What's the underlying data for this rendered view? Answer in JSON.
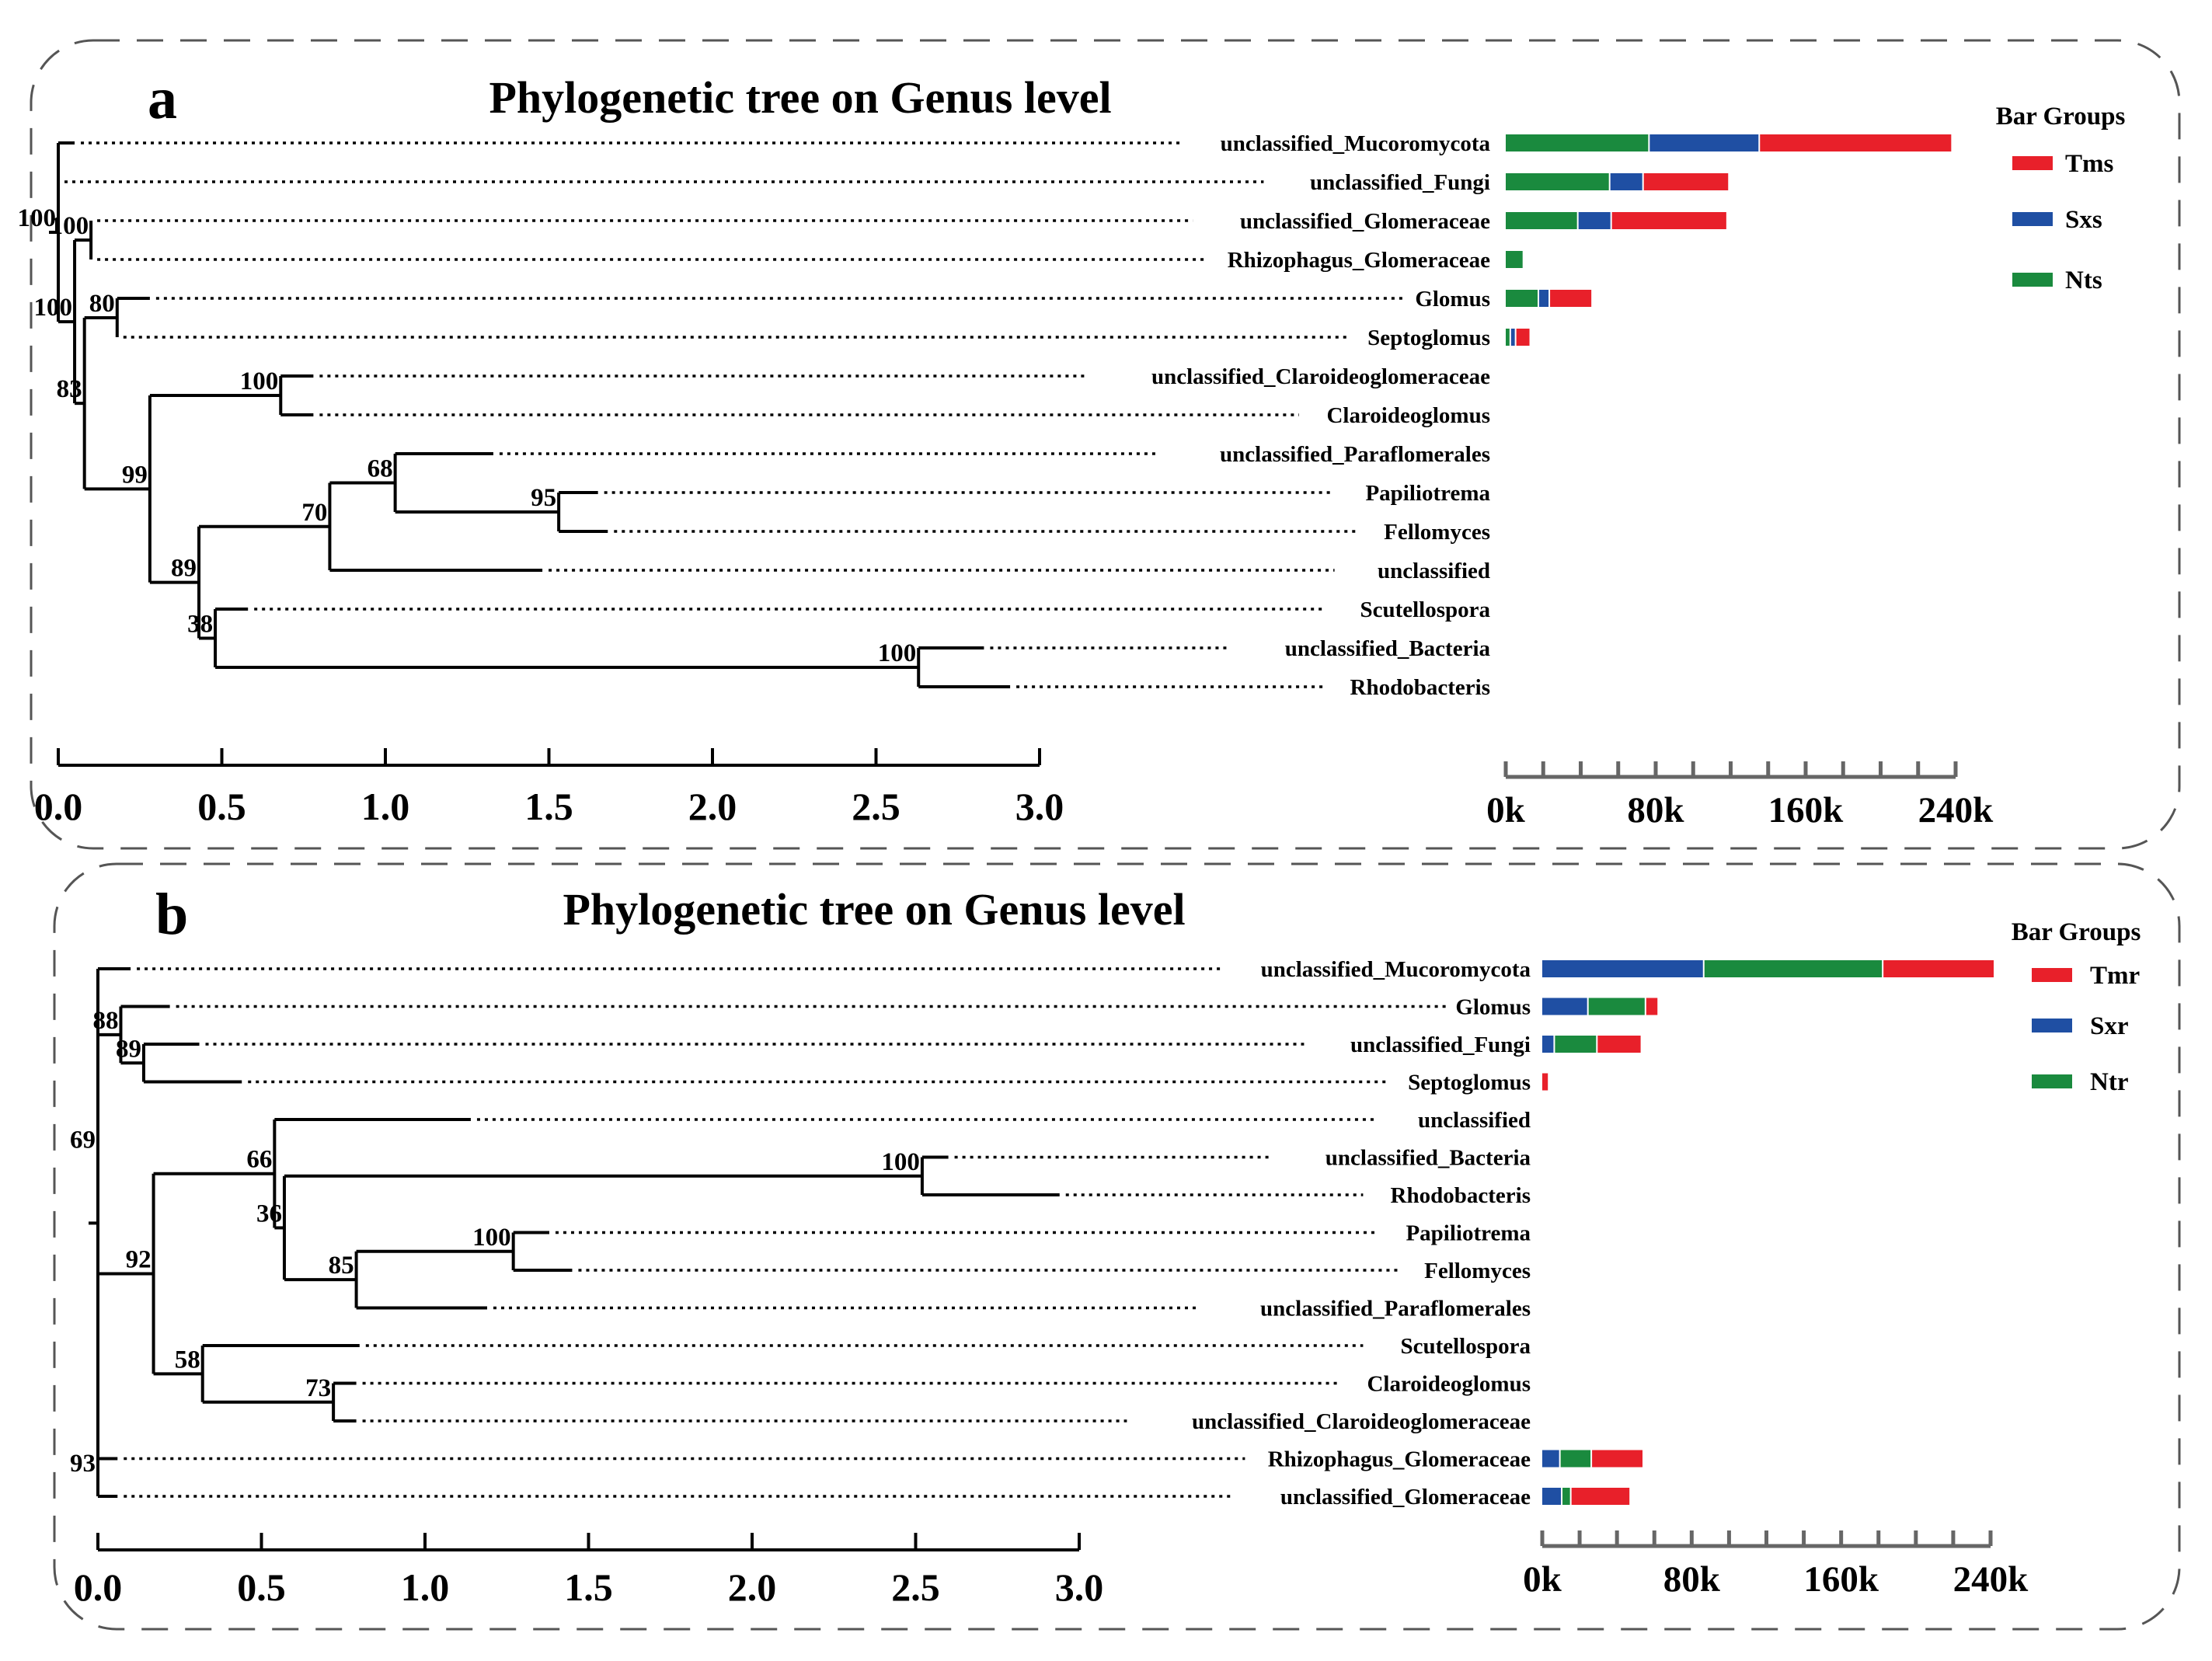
{
  "chart_data": [
    {
      "type": "phylogenetic-tree-with-stacked-bars",
      "panel_label": "a",
      "title": "Phylogenetic tree on Genus level",
      "tree_axis": {
        "min": 0.0,
        "max": 3.0,
        "ticks": [
          "0.0",
          "0.5",
          "1.0",
          "1.5",
          "2.0",
          "2.5",
          "3.0"
        ]
      },
      "bar_axis": {
        "min": 0,
        "max": 240000,
        "ticks": [
          "0k",
          "80k",
          "160k",
          "240k"
        ]
      },
      "legend_title": "Bar Groups",
      "series": [
        {
          "name": "Tms",
          "color": "#e8202a"
        },
        {
          "name": "Sxs",
          "color": "#1f4fa3"
        },
        {
          "name": "Nts",
          "color": "#1a8a3e"
        }
      ],
      "stack_order": [
        "Nts",
        "Sxs",
        "Tms"
      ],
      "leaves": [
        {
          "name": "unclassified_Mucoromycota",
          "Nts": 76000,
          "Sxs": 58000,
          "Tms": 102000
        },
        {
          "name": "unclassified_Fungi",
          "Nts": 55000,
          "Sxs": 17000,
          "Tms": 45000
        },
        {
          "name": "unclassified_Glomeraceae",
          "Nts": 38000,
          "Sxs": 17000,
          "Tms": 61000
        },
        {
          "name": "Rhizophagus_Glomeraceae",
          "Nts": 9000,
          "Sxs": 0,
          "Tms": 0
        },
        {
          "name": "Glomus",
          "Nts": 17000,
          "Sxs": 5000,
          "Tms": 22000
        },
        {
          "name": "Septoglomus",
          "Nts": 2000,
          "Sxs": 2000,
          "Tms": 7000
        },
        {
          "name": "unclassified_Claroideoglomeraceae",
          "Nts": 0,
          "Sxs": 0,
          "Tms": 0
        },
        {
          "name": "Claroideoglomus",
          "Nts": 0,
          "Sxs": 0,
          "Tms": 0
        },
        {
          "name": "unclassified_Paraflomerales",
          "Nts": 0,
          "Sxs": 0,
          "Tms": 0
        },
        {
          "name": "Papiliotrema",
          "Nts": 0,
          "Sxs": 0,
          "Tms": 0
        },
        {
          "name": "Fellomyces",
          "Nts": 0,
          "Sxs": 0,
          "Tms": 0
        },
        {
          "name": "unclassified",
          "Nts": 0,
          "Sxs": 0,
          "Tms": 0
        },
        {
          "name": "Scutellospora",
          "Nts": 0,
          "Sxs": 0,
          "Tms": 0
        },
        {
          "name": "unclassified_Bacteria",
          "Nts": 0,
          "Sxs": 0,
          "Tms": 0
        },
        {
          "name": "Rhodobacteris",
          "Nts": 0,
          "Sxs": 0,
          "Tms": 0
        }
      ],
      "tree": {
        "support": "100",
        "leaf_count": 15,
        "top": true,
        "children": [
          {
            "leaf": "unclassified_Mucoromycota",
            "length": 0.05
          },
          {
            "leaf": "unclassified_Fungi",
            "length": 0.0
          },
          {
            "support": "100",
            "length": 0.05,
            "children": [
              {
                "support": "100",
                "length": 0.05,
                "children": [
                  {
                    "leaf": "unclassified_Glomeraceae",
                    "length": 0.0
                  },
                  {
                    "leaf": "Rhizophagus_Glomeraceae",
                    "length": 0.0
                  }
                ]
              },
              {
                "support": "83",
                "length": 0.03,
                "children": [
                  {
                    "support": "80",
                    "length": 0.1,
                    "children": [
                      {
                        "leaf": "Glomus",
                        "length": 0.1
                      },
                      {
                        "leaf": "Septoglomus",
                        "length": 0.0
                      }
                    ]
                  },
                  {
                    "support": "99",
                    "length": 0.2,
                    "children": [
                      {
                        "support": "100",
                        "length": 0.4,
                        "children": [
                          {
                            "leaf": "unclassified_Claroideoglomeraceae",
                            "length": 0.1
                          },
                          {
                            "leaf": "Claroideoglomus",
                            "length": 0.1
                          }
                        ]
                      },
                      {
                        "support": "89",
                        "length": 0.15,
                        "children": [
                          {
                            "support": "70",
                            "length": 0.4,
                            "children": [
                              {
                                "support": "68",
                                "length": 0.2,
                                "children": [
                                  {
                                    "leaf": "unclassified_Paraflomerales",
                                    "length": 0.3
                                  },
                                  {
                                    "support": "95",
                                    "length": 0.5,
                                    "children": [
                                      {
                                        "leaf": "Papiliotrema",
                                        "length": 0.12
                                      },
                                      {
                                        "leaf": "Fellomyces",
                                        "length": 0.15
                                      }
                                    ]
                                  }
                                ]
                              },
                              {
                                "leaf": "unclassified",
                                "length": 0.65
                              }
                            ]
                          },
                          {
                            "support": "38",
                            "length": 0.05,
                            "children": [
                              {
                                "leaf": "Scutellospora",
                                "length": 0.1
                              },
                              {
                                "support": "100",
                                "length": 2.15,
                                "children": [
                                  {
                                    "leaf": "unclassified_Bacteria",
                                    "length": 0.2
                                  },
                                  {
                                    "leaf": "Rhodobacteris",
                                    "length": 0.28
                                  }
                                ]
                              }
                            ]
                          }
                        ]
                      }
                    ]
                  }
                ]
              }
            ]
          }
        ]
      }
    },
    {
      "type": "phylogenetic-tree-with-stacked-bars",
      "panel_label": "b",
      "title": "Phylogenetic tree on Genus level",
      "tree_axis": {
        "min": 0.0,
        "max": 3.0,
        "ticks": [
          "0.0",
          "0.5",
          "1.0",
          "1.5",
          "2.0",
          "2.5",
          "3.0"
        ]
      },
      "bar_axis": {
        "min": 0,
        "max": 240000,
        "ticks": [
          "0k",
          "80k",
          "160k",
          "240k"
        ]
      },
      "legend_title": "Bar Groups",
      "series": [
        {
          "name": "Tmr",
          "color": "#e8202a"
        },
        {
          "name": "Sxr",
          "color": "#1f4fa3"
        },
        {
          "name": "Ntr",
          "color": "#1a8a3e"
        }
      ],
      "stack_order": [
        "Sxr",
        "Ntr",
        "Tmr"
      ],
      "leaves": [
        {
          "name": "unclassified_Mucoromycota",
          "Sxr": 86000,
          "Ntr": 95000,
          "Tmr": 59000
        },
        {
          "name": "Glomus",
          "Sxr": 24000,
          "Ntr": 30000,
          "Tmr": 6000
        },
        {
          "name": "unclassified_Fungi",
          "Sxr": 6000,
          "Ntr": 22000,
          "Tmr": 23000
        },
        {
          "name": "Septoglomus",
          "Sxr": 0,
          "Ntr": 0,
          "Tmr": 3000
        },
        {
          "name": "unclassified",
          "Sxr": 0,
          "Ntr": 0,
          "Tmr": 0
        },
        {
          "name": "unclassified_Bacteria",
          "Sxr": 0,
          "Ntr": 0,
          "Tmr": 0
        },
        {
          "name": "Rhodobacteris",
          "Sxr": 0,
          "Ntr": 0,
          "Tmr": 0
        },
        {
          "name": "Papiliotrema",
          "Sxr": 0,
          "Ntr": 0,
          "Tmr": 0
        },
        {
          "name": "Fellomyces",
          "Sxr": 0,
          "Ntr": 0,
          "Tmr": 0
        },
        {
          "name": "unclassified_Paraflomerales",
          "Sxr": 0,
          "Ntr": 0,
          "Tmr": 0
        },
        {
          "name": "Scutellospora",
          "Sxr": 0,
          "Ntr": 0,
          "Tmr": 0
        },
        {
          "name": "Claroideoglomus",
          "Sxr": 0,
          "Ntr": 0,
          "Tmr": 0
        },
        {
          "name": "unclassified_Claroideoglomeraceae",
          "Sxr": 0,
          "Ntr": 0,
          "Tmr": 0
        },
        {
          "name": "Rhizophagus_Glomeraceae",
          "Sxr": 9000,
          "Ntr": 16000,
          "Tmr": 27000
        },
        {
          "name": "unclassified_Glomeraceae",
          "Sxr": 10000,
          "Ntr": 4000,
          "Tmr": 31000
        }
      ],
      "tree": {
        "support": "",
        "leaf_count": 15,
        "top": true,
        "children": [
          {
            "leaf": "unclassified_Mucoromycota",
            "length": 0.1
          },
          {
            "support": "69",
            "length": 0.0,
            "children": [
              {
                "support": "88",
                "length": 0.07,
                "children": [
                  {
                    "leaf": "Glomus",
                    "length": 0.15
                  },
                  {
                    "support": "89",
                    "length": 0.07,
                    "children": [
                      {
                        "leaf": "unclassified_Fungi",
                        "length": 0.17
                      },
                      {
                        "leaf": "Septoglomus",
                        "length": 0.3
                      }
                    ]
                  }
                ]
              },
              {
                "support": "92",
                "length": 0.17,
                "children": [
                  {
                    "support": "66",
                    "length": 0.37,
                    "children": [
                      {
                        "leaf": "unclassified",
                        "length": 0.6
                      },
                      {
                        "support": "36",
                        "length": 0.03,
                        "children": [
                          {
                            "support": "100",
                            "length": 1.95,
                            "children": [
                              {
                                "leaf": "unclassified_Bacteria",
                                "length": 0.08
                              },
                              {
                                "leaf": "Rhodobacteris",
                                "length": 0.42
                              }
                            ]
                          },
                          {
                            "support": "85",
                            "length": 0.22,
                            "children": [
                              {
                                "support": "100",
                                "length": 0.48,
                                "children": [
                                  {
                                    "leaf": "Papiliotrema",
                                    "length": 0.11
                                  },
                                  {
                                    "leaf": "Fellomyces",
                                    "length": 0.18
                                  }
                                ]
                              },
                              {
                                "leaf": "unclassified_Paraflomerales",
                                "length": 0.4
                              }
                            ]
                          }
                        ]
                      }
                    ]
                  },
                  {
                    "support": "58",
                    "length": 0.15,
                    "children": [
                      {
                        "leaf": "Scutellospora",
                        "length": 0.48
                      },
                      {
                        "support": "73",
                        "length": 0.4,
                        "children": [
                          {
                            "leaf": "Claroideoglomus",
                            "length": 0.07
                          },
                          {
                            "leaf": "unclassified_Claroideoglomeraceae",
                            "length": 0.07
                          }
                        ]
                      }
                    ]
                  }
                ]
              }
            ]
          },
          {
            "support": "93",
            "length": 0.0,
            "children": [
              {
                "leaf": "Rhizophagus_Glomeraceae",
                "length": 0.06
              },
              {
                "leaf": "unclassified_Glomeraceae",
                "length": 0.06
              }
            ]
          }
        ]
      }
    }
  ]
}
